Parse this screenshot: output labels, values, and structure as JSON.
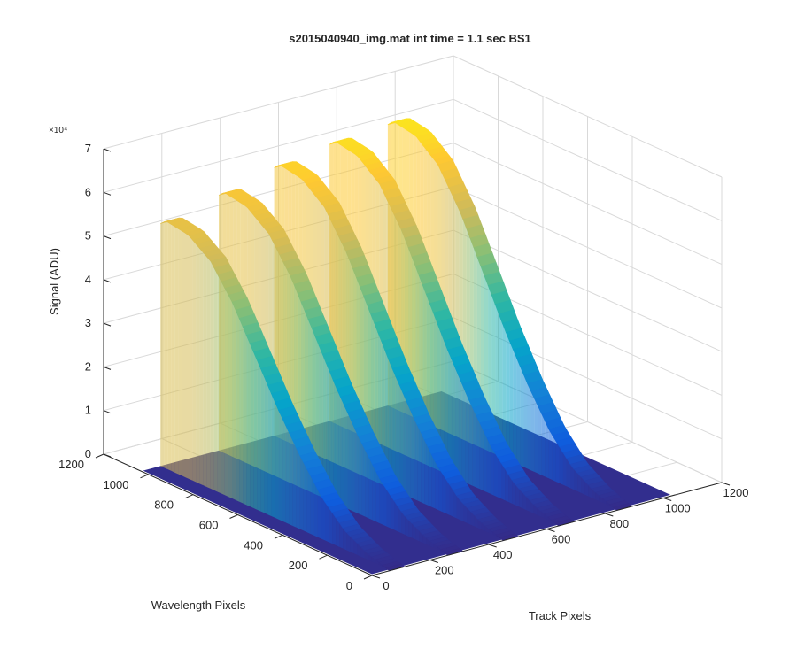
{
  "chart_data": {
    "type": "surface",
    "title": "s2015040940_img.mat int time = 1.1 sec   BS1",
    "xlabel": "Track Pixels",
    "ylabel": "Wavelength Pixels",
    "zlabel": "Signal (ADU)",
    "z_exponent_label": "×10⁴",
    "xlim": [
      0,
      1200
    ],
    "ylim": [
      0,
      1200
    ],
    "zlim": [
      0,
      70000
    ],
    "x_ticks": [
      "0",
      "200",
      "400",
      "600",
      "800",
      "1000",
      "1200"
    ],
    "y_ticks": [
      "0",
      "200",
      "400",
      "600",
      "800",
      "1000",
      "1200"
    ],
    "z_ticks": [
      "0",
      "1",
      "2",
      "3",
      "4",
      "5",
      "6",
      "7"
    ],
    "z_tick_values": [
      0,
      10000,
      20000,
      30000,
      40000,
      50000,
      60000,
      70000
    ],
    "grid": true,
    "colormap": "parula",
    "colormap_colors": [
      "#352a87",
      "#0f5cdd",
      "#1481d6",
      "#06a4ca",
      "#2eb7a4",
      "#87bf77",
      "#d1bb59",
      "#fec832",
      "#f9fb0e"
    ],
    "series": [
      {
        "track_pixel": 90,
        "peak_signal": 57000
      },
      {
        "track_pixel": 290,
        "peak_signal": 60000
      },
      {
        "track_pixel": 480,
        "peak_signal": 63000
      },
      {
        "track_pixel": 670,
        "peak_signal": 65000
      },
      {
        "track_pixel": 870,
        "peak_signal": 66000
      }
    ],
    "surface_extent": {
      "x": [
        0,
        1024
      ],
      "y": [
        0,
        1024
      ]
    },
    "signal_profile_along_wavelength": {
      "wavelength_pixels": [
        0,
        100,
        200,
        300,
        400,
        500,
        600,
        700,
        800,
        900,
        1000,
        1024
      ],
      "relative_signal": [
        0.0,
        0.03,
        0.08,
        0.17,
        0.3,
        0.45,
        0.62,
        0.79,
        0.92,
        0.985,
        1.0,
        0.98
      ]
    }
  }
}
